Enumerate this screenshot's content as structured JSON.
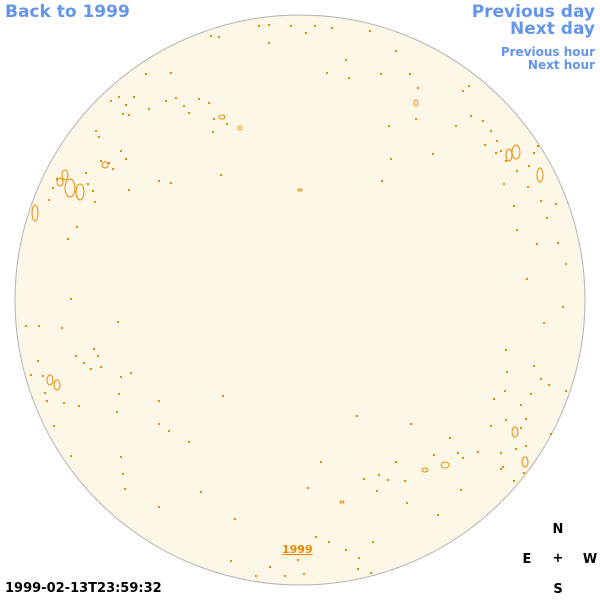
{
  "nav": {
    "back_label": "Back to 1999",
    "previous_day_label": "Previous day",
    "next_day_label": "Next day",
    "previous_hour_label": "Previous hour",
    "next_hour_label": "Next hour"
  },
  "map": {
    "year_label": "1999"
  },
  "timestamp": "1999-02-13T23:59:32",
  "compass": {
    "north": "N",
    "east": "E",
    "center": "+",
    "west": "W",
    "south": "S"
  },
  "colors": {
    "link": "#6495ed",
    "disk_fill": "#fdf7e8",
    "disk_border": "#b3b3b3",
    "contour": "#e88a00"
  }
}
